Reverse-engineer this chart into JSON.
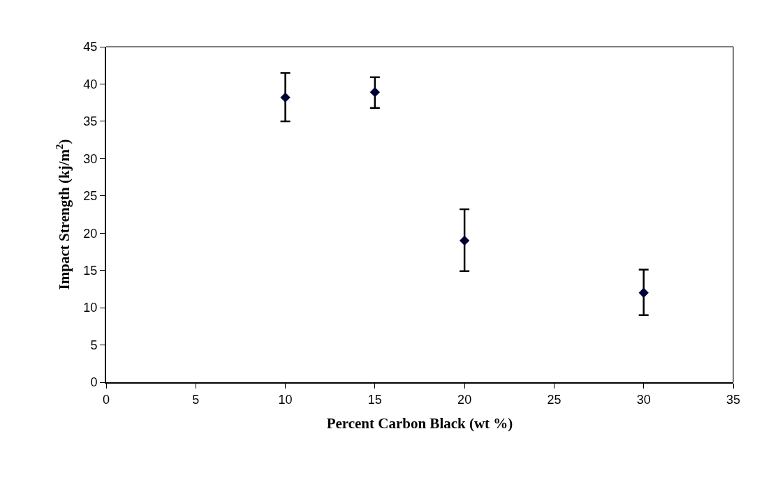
{
  "chart_data": {
    "type": "scatter",
    "xlabel": "Percent Carbon Black (wt %)",
    "ylabel": "Impact Strength (kj/m$^{2}$)",
    "x": [
      10,
      15,
      20,
      30
    ],
    "values": [
      38.2,
      38.9,
      19.0,
      12.0
    ],
    "errors": [
      [
        35.0,
        41.5
      ],
      [
        36.8,
        40.9
      ],
      [
        14.9,
        23.2
      ],
      [
        9.0,
        15.1
      ]
    ],
    "color": "#000033",
    "marker": "diamond",
    "xlim": [
      0,
      35
    ],
    "xticks": [
      0,
      5,
      10,
      15,
      20,
      25,
      30,
      35
    ],
    "ylim": [
      0,
      45
    ],
    "yticks": [
      0,
      5,
      10,
      15,
      20,
      25,
      30,
      35,
      40,
      45
    ]
  }
}
